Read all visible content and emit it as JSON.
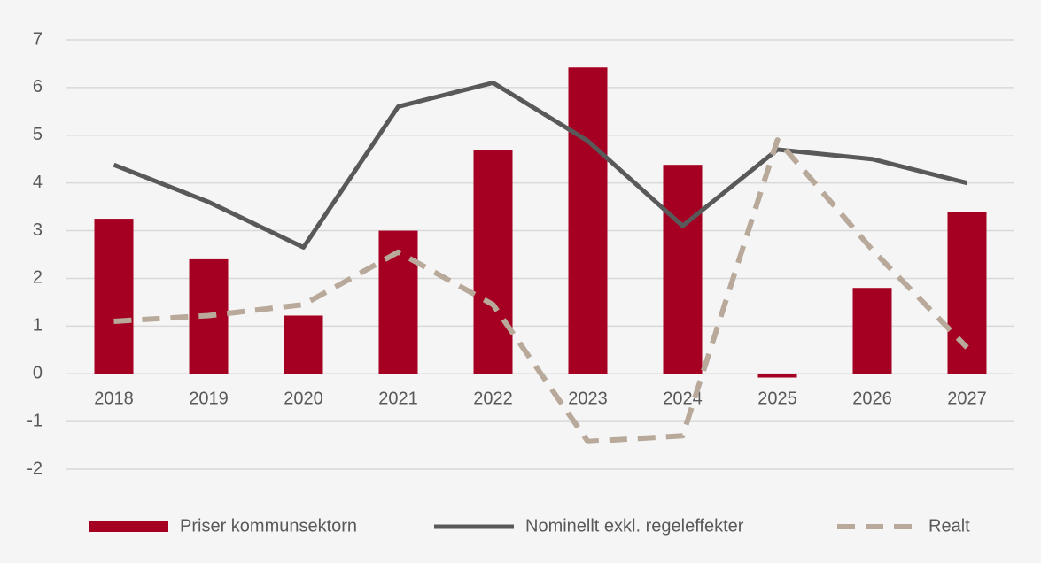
{
  "chart_data": {
    "type": "bar",
    "categories": [
      "2018",
      "2019",
      "2020",
      "2021",
      "2022",
      "2023",
      "2024",
      "2025",
      "2026",
      "2027"
    ],
    "series": [
      {
        "name": "Priser kommunsektorn",
        "type": "bar",
        "color": "#a50021",
        "values": [
          3.25,
          2.4,
          1.22,
          3.0,
          4.68,
          6.42,
          4.38,
          -0.08,
          1.8,
          3.4
        ]
      },
      {
        "name": "Nominellt exkl. regeleffekter",
        "type": "line",
        "color": "#595959",
        "values": [
          4.38,
          3.6,
          2.65,
          5.6,
          6.1,
          4.88,
          3.1,
          4.7,
          4.5,
          4.0
        ]
      },
      {
        "name": "Realt",
        "type": "line",
        "dashed": true,
        "color": "#b8a99a",
        "values": [
          1.1,
          1.22,
          1.45,
          2.55,
          1.45,
          -1.42,
          -1.3,
          4.9,
          2.6,
          0.55
        ]
      }
    ],
    "ylim": [
      -2,
      7
    ],
    "yticks": [
      -2,
      -1,
      0,
      1,
      2,
      3,
      4,
      5,
      6,
      7
    ],
    "grid": true,
    "legend": "bottom"
  }
}
